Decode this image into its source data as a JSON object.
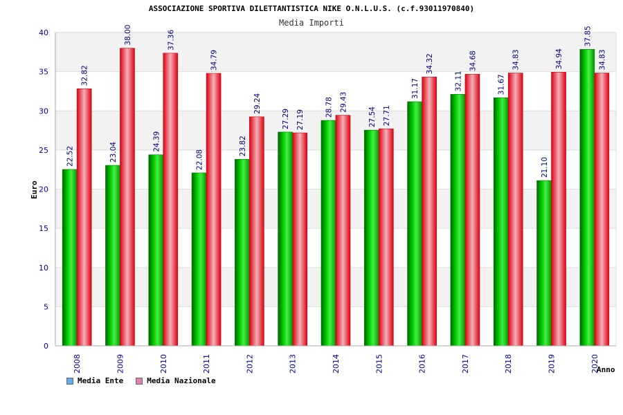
{
  "header": {
    "title": "ASSOCIAZIONE SPORTIVA DILETTANTISTICA NIKE O.N.L.U.S. (c.f.93011970840)",
    "subtitle": "Media Importi"
  },
  "legend": {
    "items": [
      {
        "label": "Media Ente",
        "color": "#66aaee"
      },
      {
        "label": "Media Nazionale",
        "color": "#e080b0"
      }
    ]
  },
  "chart_data": {
    "type": "bar",
    "title": "Media Importi",
    "xlabel": "Anno",
    "ylabel": "Euro",
    "ylim": [
      0,
      40
    ],
    "yticks": [
      0,
      5,
      10,
      15,
      20,
      25,
      30,
      35,
      40
    ],
    "grid": true,
    "categories": [
      "2008",
      "2009",
      "2010",
      "2011",
      "2012",
      "2013",
      "2014",
      "2015",
      "2016",
      "2017",
      "2018",
      "2019",
      "2020"
    ],
    "series": [
      {
        "name": "Media Ente",
        "color": "#00b000",
        "values": [
          22.52,
          23.04,
          24.39,
          22.08,
          23.82,
          27.29,
          28.78,
          27.54,
          31.17,
          32.11,
          31.67,
          21.1,
          37.85
        ],
        "labels": [
          "22.52",
          "23.04",
          "24.39",
          "22.08",
          "23.82",
          "27.29",
          "28.78",
          "27.54",
          "31.17",
          "32.11",
          "31.67",
          "21.10",
          "37.85"
        ]
      },
      {
        "name": "Media Nazionale",
        "color": "#ee1122",
        "values": [
          32.82,
          38.0,
          37.36,
          34.79,
          29.24,
          27.19,
          29.43,
          27.71,
          34.32,
          34.68,
          34.83,
          34.94,
          34.83
        ],
        "labels": [
          "32.82",
          "38.00",
          "37.36",
          "34.79",
          "29.24",
          "27.19",
          "29.43",
          "27.71",
          "34.32",
          "34.68",
          "34.83",
          "34.94",
          "34.83"
        ]
      }
    ]
  }
}
